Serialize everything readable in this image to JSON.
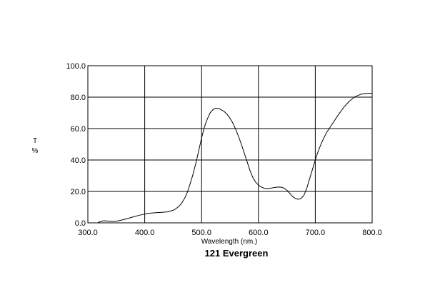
{
  "chart_data": {
    "type": "line",
    "title": "121 Evergreen",
    "xlabel": "Wavelength (nm.)",
    "ylabel_top": "T",
    "ylabel_bottom": "%",
    "xlim": [
      300,
      800
    ],
    "ylim": [
      0,
      100
    ],
    "grid": true,
    "x_ticks": [
      300,
      400,
      500,
      600,
      700,
      800
    ],
    "y_ticks": [
      0,
      20,
      40,
      60,
      80,
      100
    ],
    "x_tick_labels": [
      "300.0",
      "400.0",
      "500.0",
      "600.0",
      "700.0",
      "800.0"
    ],
    "y_tick_labels": [
      "0.0",
      "20.0",
      "40.0",
      "60.0",
      "80.0",
      "100.0"
    ],
    "series": [
      {
        "x": [
          318,
          322,
          326,
          330,
          335,
          340,
          345,
          350,
          360,
          370,
          380,
          390,
          400,
          410,
          420,
          430,
          440,
          450,
          455,
          460,
          465,
          470,
          475,
          480,
          485,
          490,
          495,
          500,
          505,
          510,
          515,
          520,
          525,
          530,
          535,
          540,
          545,
          550,
          555,
          560,
          565,
          570,
          575,
          580,
          585,
          590,
          595,
          600,
          605,
          610,
          615,
          620,
          625,
          630,
          635,
          640,
          645,
          650,
          655,
          660,
          665,
          670,
          675,
          680,
          685,
          690,
          695,
          700,
          705,
          710,
          715,
          720,
          730,
          740,
          750,
          760,
          770,
          780,
          790,
          800
        ],
        "y": [
          0.2,
          0.8,
          1.2,
          1.3,
          1.1,
          0.9,
          0.9,
          1.0,
          1.8,
          2.8,
          3.8,
          4.8,
          5.6,
          6.2,
          6.5,
          6.7,
          7.0,
          8.0,
          9.0,
          10.5,
          12.5,
          15.5,
          19.5,
          25,
          31,
          38,
          46,
          54,
          61,
          66,
          70,
          72,
          73,
          72.8,
          71.9,
          70.8,
          69,
          66.5,
          63.5,
          59.5,
          55,
          50,
          44.5,
          39,
          33.5,
          29,
          26,
          24,
          22.8,
          22,
          21.8,
          22,
          22.3,
          22.6,
          22.8,
          22.7,
          22.1,
          20.8,
          18.8,
          16.8,
          15.5,
          15,
          15.5,
          17.5,
          22,
          28,
          34,
          40,
          45.5,
          50,
          54,
          57.5,
          63,
          68.5,
          73.5,
          77.5,
          80.3,
          81.8,
          82.4,
          82.5
        ]
      }
    ]
  }
}
